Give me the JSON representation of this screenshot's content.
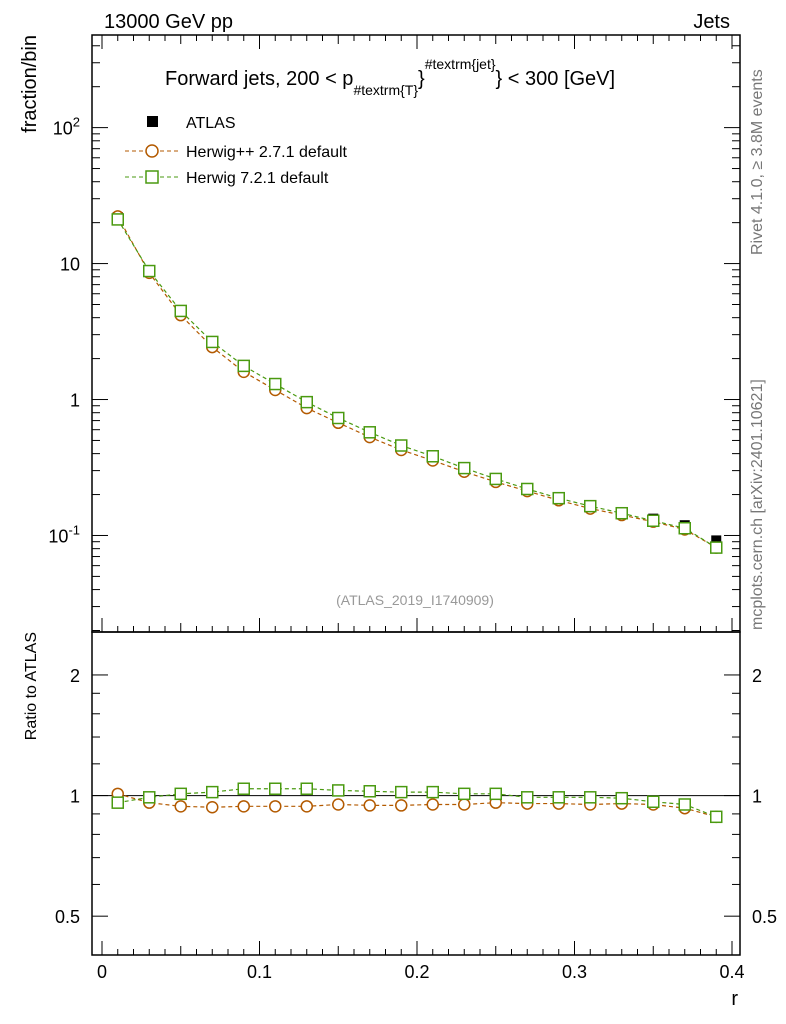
{
  "header": {
    "left": "13000 GeV pp",
    "right": "Jets"
  },
  "side_labels": {
    "rivet": "Rivet 4.1.0, ≥ 3.8M events",
    "mcplots": "mcplots.cern.ch [arXiv:2401.10621]"
  },
  "colors": {
    "atlas": "#000000",
    "herwigpp": "#b35a00",
    "herwig7": "#4a9a10"
  },
  "chart_data": {
    "type": "line",
    "title": "Forward jets, 200 < p_{#textrm{T}}^{#textrm{jet}} < 300 [GeV]",
    "title_parts": {
      "pre": "Forward jets, 200 < p",
      "sub": "#textrm{T}",
      "sup": "#textrm{jet}",
      "post": "} < 300 [GeV]",
      "brace": "}"
    },
    "watermark": "(ATLAS_2019_I1740909)",
    "xlabel": "r",
    "ylabel": "fraction/bin",
    "ratio_ylabel": "Ratio to ATLAS",
    "xlim": [
      0,
      0.4
    ],
    "ylim": [
      0.0195,
      480
    ],
    "yscale": "log",
    "ratio_ylim": [
      0.4,
      2.56
    ],
    "ratio_yscale": "log",
    "x_ticks": [
      "0",
      "0.1",
      "0.2",
      "0.3",
      "0.4"
    ],
    "y_ticks": [
      "10^-1",
      "1",
      "10",
      "10^2"
    ],
    "ratio_ticks": [
      "0.5",
      "1",
      "2"
    ],
    "legend": {
      "placement": "top-left",
      "entries": [
        "ATLAS",
        "Herwig++ 2.7.1 default",
        "Herwig 7.2.1 default"
      ]
    },
    "x": [
      0.01,
      0.03,
      0.05,
      0.07,
      0.09,
      0.11,
      0.13,
      0.15,
      0.17,
      0.19,
      0.21,
      0.23,
      0.25,
      0.27,
      0.29,
      0.31,
      0.33,
      0.35,
      0.37,
      0.39
    ],
    "series": [
      {
        "name": "ATLAS",
        "values": [
          22,
          8.9,
          4.44,
          2.6,
          1.7,
          1.25,
          0.92,
          0.71,
          0.56,
          0.45,
          0.375,
          0.31,
          0.258,
          0.222,
          0.19,
          0.166,
          0.148,
          0.133,
          0.119,
          0.092
        ]
      },
      {
        "name": "Herwig++ 2.7.1 default",
        "ratio": [
          1.01,
          0.96,
          0.94,
          0.935,
          0.94,
          0.94,
          0.94,
          0.95,
          0.945,
          0.945,
          0.95,
          0.95,
          0.96,
          0.955,
          0.955,
          0.95,
          0.955,
          0.95,
          0.93,
          0.885
        ]
      },
      {
        "name": "Herwig 7.2.1 default",
        "ratio": [
          0.96,
          0.99,
          1.01,
          1.02,
          1.04,
          1.04,
          1.04,
          1.03,
          1.025,
          1.02,
          1.02,
          1.01,
          1.01,
          0.99,
          0.99,
          0.99,
          0.985,
          0.965,
          0.95,
          0.885
        ]
      }
    ]
  }
}
